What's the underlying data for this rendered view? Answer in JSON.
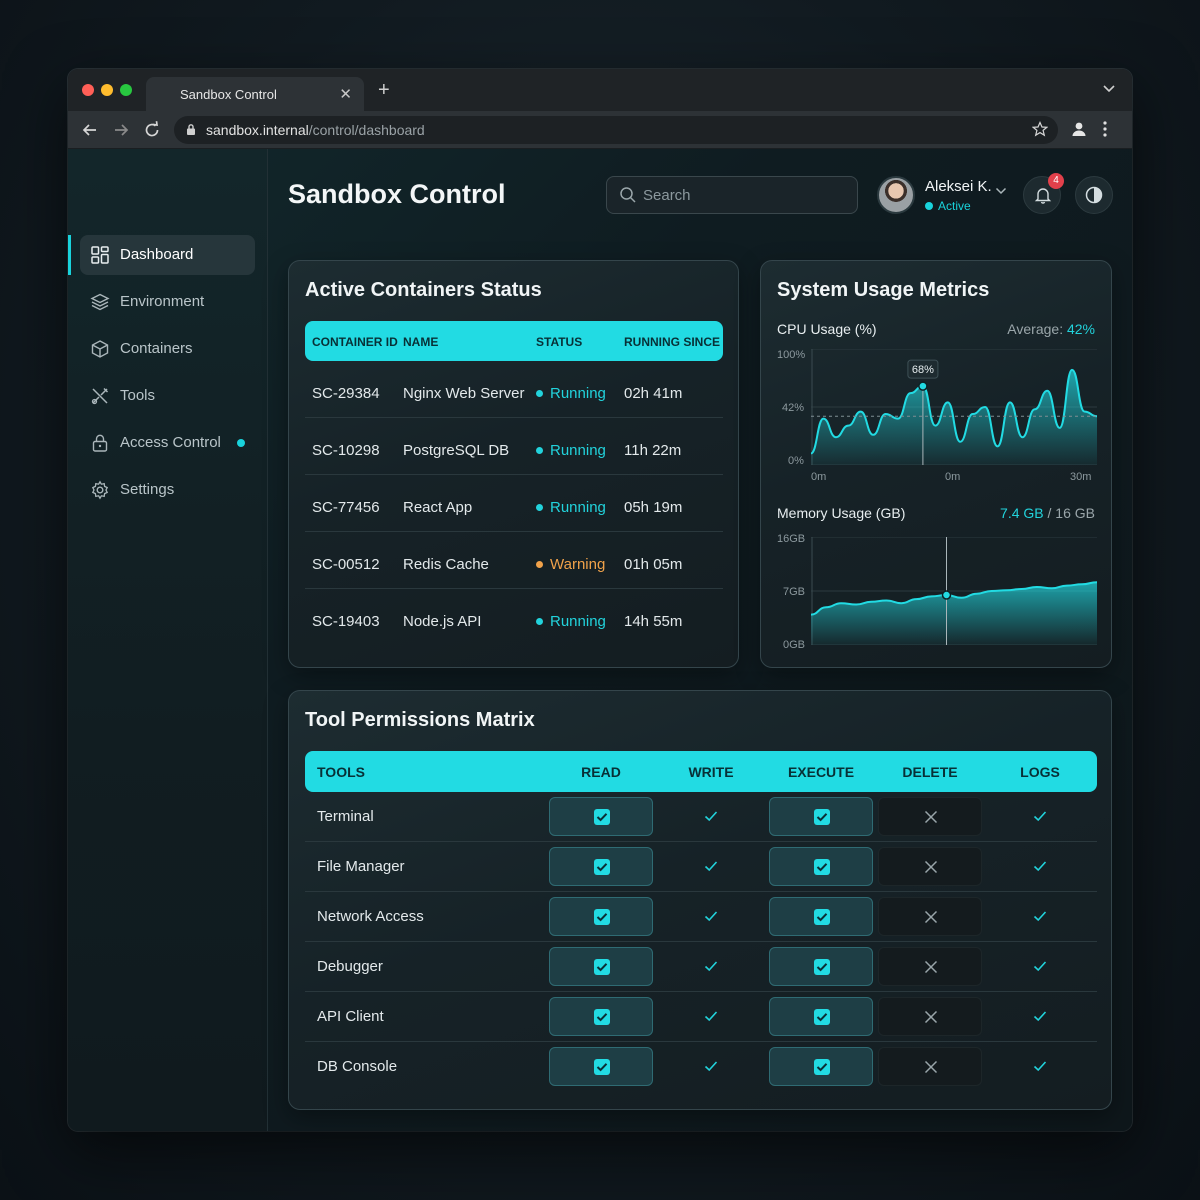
{
  "browser": {
    "tab_title": "Sandbox Control",
    "url_host": "sandbox.internal",
    "url_path": "/control/dashboard"
  },
  "sidebar": {
    "items": [
      {
        "label": "Dashboard",
        "icon": "grid-icon",
        "active": true
      },
      {
        "label": "Environment",
        "icon": "layers-icon"
      },
      {
        "label": "Containers",
        "icon": "cube-icon"
      },
      {
        "label": "Tools",
        "icon": "tools-icon"
      },
      {
        "label": "Access Control",
        "icon": "lock-icon",
        "indicator": true
      },
      {
        "label": "Settings",
        "icon": "gear-icon"
      }
    ]
  },
  "header": {
    "title": "Sandbox Control",
    "search_placeholder": "Search",
    "user_name": "Aleksei K.",
    "user_status": "Active",
    "notification_count": "4"
  },
  "containers": {
    "title": "Active Containers Status",
    "columns": [
      "CONTAINER ID",
      "NAME",
      "STATUS",
      "RUNNING SINCE"
    ],
    "rows": [
      {
        "id": "SC-29384",
        "name": "Nginx Web Server",
        "status": "Running",
        "since": "02h 41m"
      },
      {
        "id": "SC-10298",
        "name": "PostgreSQL DB",
        "status": "Running",
        "since": "11h 22m"
      },
      {
        "id": "SC-77456",
        "name": "React App",
        "status": "Running",
        "since": "05h 19m"
      },
      {
        "id": "SC-00512",
        "name": "Redis Cache",
        "status": "Warning",
        "since": "01h 05m"
      },
      {
        "id": "SC-19403",
        "name": "Node.js API",
        "status": "Running",
        "since": "14h 55m"
      }
    ],
    "status_colors": {
      "Running": "#22d3dc",
      "Warning": "#f0a24a"
    }
  },
  "metrics": {
    "title": "System Usage Metrics",
    "cpu": {
      "label": "CPU Usage (%)",
      "avg_label": "Average: ",
      "avg_value": "42%",
      "y_ticks": [
        "100%",
        "42%",
        "0%"
      ],
      "x_ticks": [
        "0m",
        "0m",
        "30m"
      ],
      "peak_label": "68%",
      "values": [
        10,
        40,
        24,
        34,
        46,
        26,
        44,
        40,
        62,
        68,
        34,
        54,
        20,
        44,
        50,
        16,
        54,
        24,
        48,
        64,
        32,
        82,
        46,
        42
      ]
    },
    "memory": {
      "label": "Memory Usage (GB)",
      "used": "7.4 GB",
      "total": " / 16 GB",
      "y_ticks": [
        "16GB",
        "7GB",
        "0GB"
      ],
      "values": [
        4.5,
        5.6,
        6.2,
        6.0,
        6.4,
        6.6,
        6.2,
        6.8,
        7.2,
        7.4,
        7.0,
        7.6,
        8.0,
        8.1,
        8.3,
        8.6,
        8.4,
        8.8,
        9.0,
        9.3
      ]
    }
  },
  "permissions": {
    "title": "Tool Permissions Matrix",
    "columns": [
      "TOOLS",
      "READ",
      "WRITE",
      "EXECUTE",
      "DELETE",
      "LOGS"
    ],
    "rows": [
      {
        "tool": "Terminal",
        "read": true,
        "write": true,
        "execute": true,
        "delete": false,
        "logs": true
      },
      {
        "tool": "File Manager",
        "read": true,
        "write": true,
        "execute": true,
        "delete": false,
        "logs": true
      },
      {
        "tool": "Network Access",
        "read": true,
        "write": true,
        "execute": true,
        "delete": false,
        "logs": true
      },
      {
        "tool": "Debugger",
        "read": true,
        "write": true,
        "execute": true,
        "delete": false,
        "logs": true
      },
      {
        "tool": "API Client",
        "read": true,
        "write": true,
        "execute": true,
        "delete": false,
        "logs": true
      },
      {
        "tool": "DB Console",
        "read": true,
        "write": true,
        "execute": true,
        "delete": false,
        "logs": true
      }
    ]
  },
  "colors": {
    "accent": "#22dbe3",
    "warning": "#f0a24a",
    "badge": "#e2404b"
  }
}
